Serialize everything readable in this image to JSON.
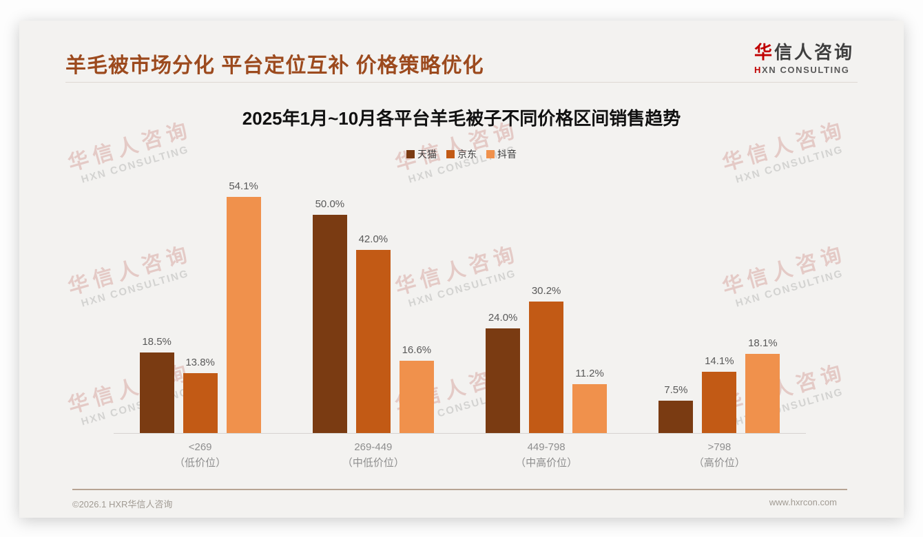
{
  "header": {
    "title": "羊毛被市场分化 平台定位互补 价格策略优化"
  },
  "logo": {
    "cn_accent": "华",
    "cn_rest": "信人咨询",
    "en_accent": "H",
    "en_rest": "XN CONSULTING"
  },
  "watermark": {
    "line1": "华信人咨询",
    "line2": "HXN CONSULTING"
  },
  "chart_data": {
    "type": "bar",
    "title": "2025年1月~10月各平台羊毛被子不同价格区间销售趋势",
    "legend_position": "top",
    "grid": false,
    "ylim": [
      0,
      60
    ],
    "value_label_suffix": "%",
    "categories": [
      {
        "range": "<269",
        "tier": "（低价位）"
      },
      {
        "range": "269-449",
        "tier": "（中低价位）"
      },
      {
        "range": "449-798",
        "tier": "（中高价位）"
      },
      {
        "range": ">798",
        "tier": "（高价位）"
      }
    ],
    "series": [
      {
        "id": "tmall",
        "name": "天猫",
        "color": "#7a3b12",
        "values": [
          18.5,
          50.0,
          24.0,
          7.5
        ]
      },
      {
        "id": "jd",
        "name": "京东",
        "color": "#c25a15",
        "values": [
          13.8,
          42.0,
          30.2,
          14.1
        ]
      },
      {
        "id": "douyin",
        "name": "抖音",
        "color": "#f0914c",
        "values": [
          54.1,
          16.6,
          11.2,
          18.1
        ]
      }
    ]
  },
  "footer": {
    "left": "©2026.1 HXR华信人咨询",
    "right": "www.hxrcon.com"
  }
}
